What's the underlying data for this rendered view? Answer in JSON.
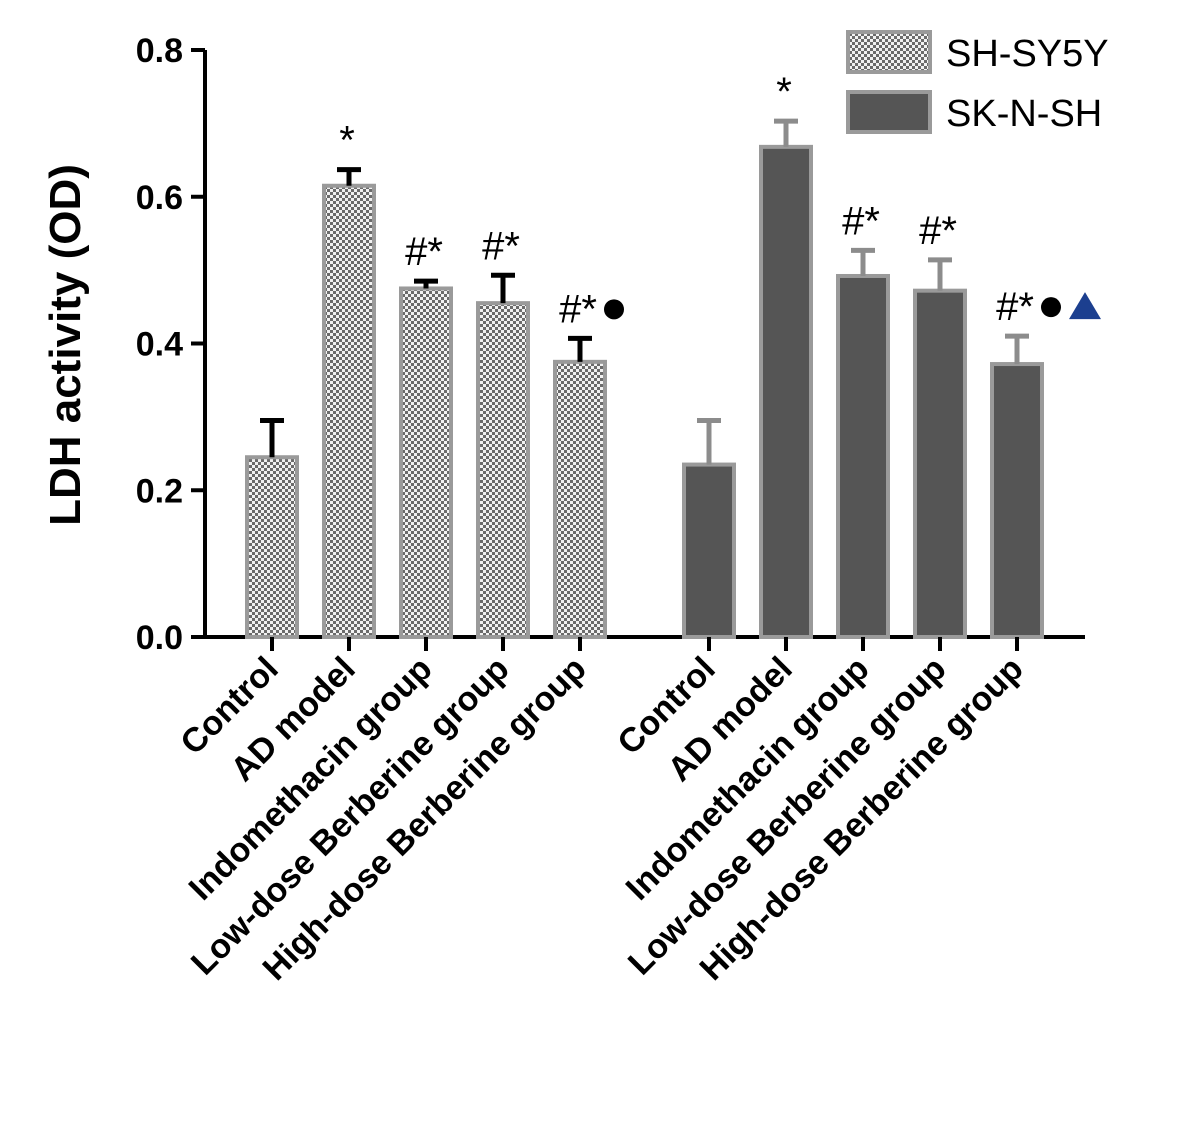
{
  "chart_data": {
    "type": "bar",
    "ylabel": "LDH activity (OD)",
    "xlabel": "",
    "ylim": [
      0,
      0.8
    ],
    "yticks": [
      "0.0",
      "0.2",
      "0.4",
      "0.6",
      "0.8"
    ],
    "legend_position": "top-right",
    "groups": [
      {
        "series": "SH-SY5Y",
        "pattern": "checkered",
        "color": "#7a7a7a",
        "categories": [
          "Control",
          "AD model",
          "Indomethacin group",
          "Low-dose Berberine group",
          "High-dose Berberine group"
        ],
        "values": [
          0.245,
          0.615,
          0.475,
          0.455,
          0.375
        ],
        "errors": [
          0.05,
          0.022,
          0.01,
          0.038,
          0.032
        ],
        "annotations": [
          "",
          "*",
          "#*",
          "#*",
          "#*●"
        ]
      },
      {
        "series": "SK-N-SH",
        "pattern": "solid",
        "color": "#555555",
        "categories": [
          "Control",
          "AD model",
          "Indomethacin group",
          "Low-dose Berberine group",
          "High-dose Berberine group"
        ],
        "values": [
          0.235,
          0.668,
          0.492,
          0.472,
          0.372
        ],
        "errors": [
          0.06,
          0.035,
          0.035,
          0.042,
          0.038
        ],
        "annotations": [
          "",
          "*",
          "#*",
          "#*",
          "#*●▲"
        ]
      }
    ],
    "legend": [
      "SH-SY5Y",
      "SK-N-SH"
    ],
    "marker_colors": {
      "circle": "#000000",
      "triangle": "#1c3f8f"
    }
  }
}
